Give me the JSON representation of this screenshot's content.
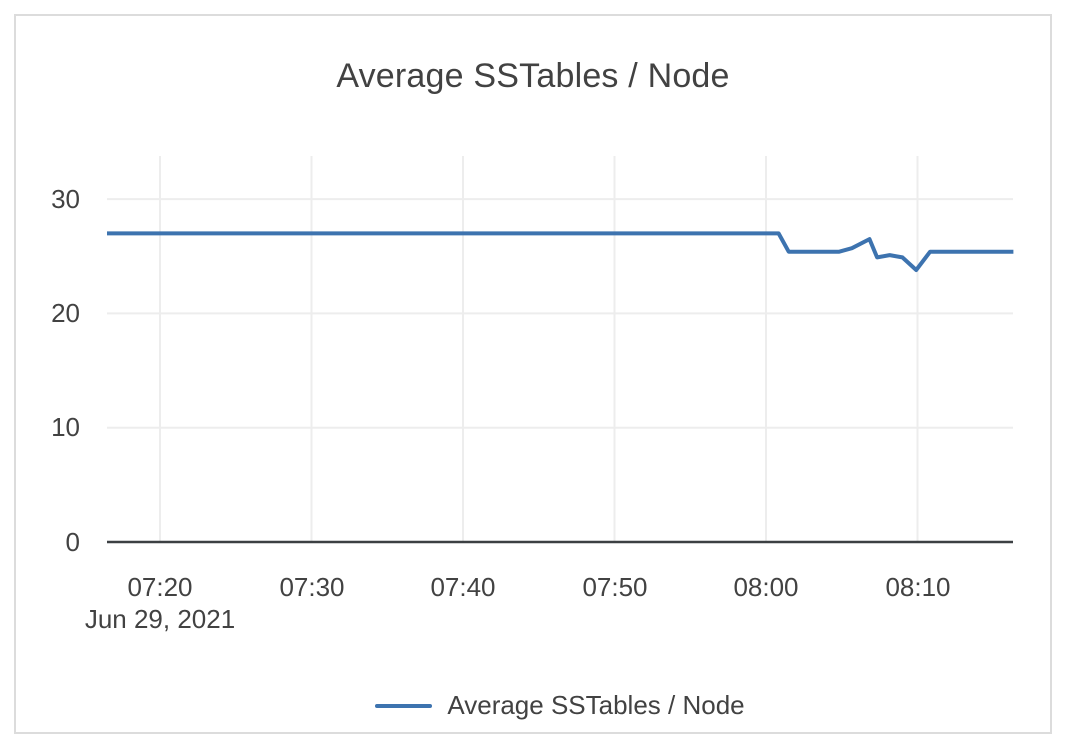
{
  "chart_data": {
    "type": "line",
    "title": "Average SSTables / Node",
    "x_axis": {
      "date_label": "Jun 29, 2021",
      "ticks": [
        {
          "label": "07:20",
          "minutes_after_0700": 20
        },
        {
          "label": "07:30",
          "minutes_after_0700": 30
        },
        {
          "label": "07:40",
          "minutes_after_0700": 40
        },
        {
          "label": "07:50",
          "minutes_after_0700": 50
        },
        {
          "label": "08:00",
          "minutes_after_0700": 60
        },
        {
          "label": "08:10",
          "minutes_after_0700": 70
        }
      ],
      "range_minutes_after_0700": [
        16.5,
        76.3
      ]
    },
    "y_axis": {
      "ticks": [
        {
          "label": "30",
          "value": 30
        },
        {
          "label": "20",
          "value": 20
        },
        {
          "label": "10",
          "value": 10
        },
        {
          "label": "0",
          "value": 0
        }
      ],
      "range": [
        0,
        33.8
      ]
    },
    "series": [
      {
        "name": "Average SSTables / Node",
        "color": "#3d73af",
        "points": [
          {
            "t": "07:16:30",
            "v": 27
          },
          {
            "t": "08:00:50",
            "v": 27
          },
          {
            "t": "08:01:30",
            "v": 25.4
          },
          {
            "t": "08:04:50",
            "v": 25.4
          },
          {
            "t": "08:05:40",
            "v": 25.7
          },
          {
            "t": "08:06:50",
            "v": 26.5
          },
          {
            "t": "08:07:20",
            "v": 24.9
          },
          {
            "t": "08:08:10",
            "v": 25.1
          },
          {
            "t": "08:09:00",
            "v": 24.9
          },
          {
            "t": "08:09:55",
            "v": 23.8
          },
          {
            "t": "08:10:50",
            "v": 25.4
          },
          {
            "t": "08:16:20",
            "v": 25.4
          }
        ]
      }
    ],
    "legend": {
      "position": "bottom",
      "entries": [
        {
          "label": "Average SSTables / Node",
          "color": "#3d73af"
        }
      ]
    },
    "grid": true
  },
  "colors": {
    "line": "#3d73af",
    "grid": "#ededed",
    "axis": "#3c4043",
    "text": "#424242",
    "card_border": "#dcdcdc",
    "background": "#ffffff"
  }
}
